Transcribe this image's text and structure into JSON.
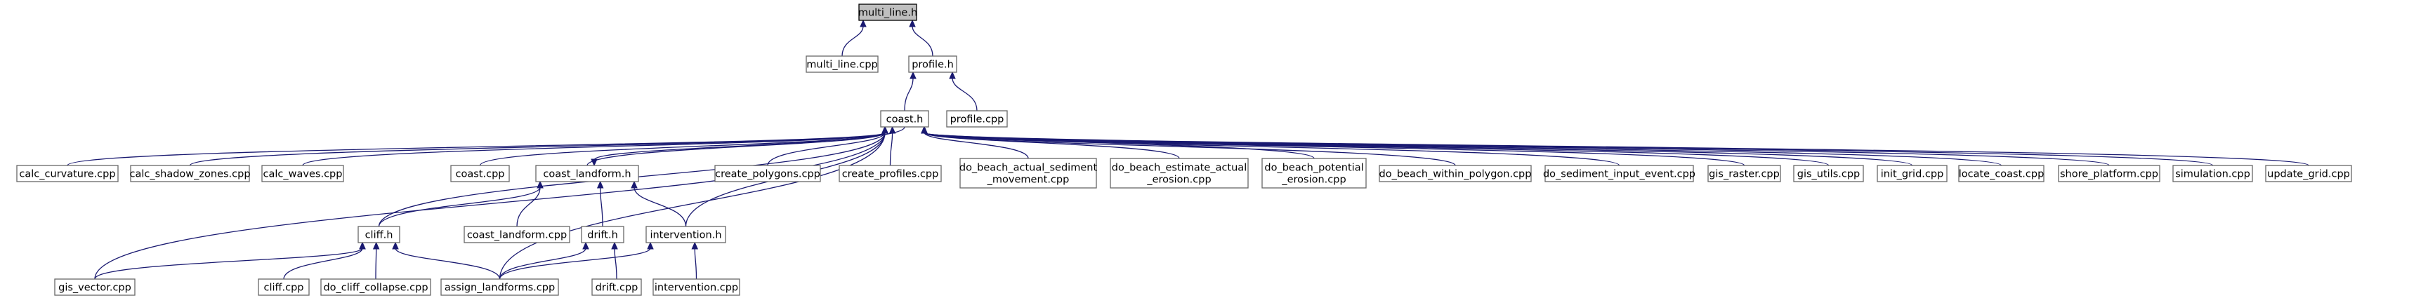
{
  "graph": {
    "nodes": {
      "multi_line_h": {
        "lines": [
          "multi_line.h"
        ],
        "root": true
      },
      "multi_line_cpp": {
        "lines": [
          "multi_line.cpp"
        ]
      },
      "profile_h": {
        "lines": [
          "profile.h"
        ]
      },
      "profile_cpp": {
        "lines": [
          "profile.cpp"
        ]
      },
      "coast_h": {
        "lines": [
          "coast.h"
        ]
      },
      "calc_curvature_cpp": {
        "lines": [
          "calc_curvature.cpp"
        ]
      },
      "calc_shadow_zones_cpp": {
        "lines": [
          "calc_shadow_zones.cpp"
        ]
      },
      "calc_waves_cpp": {
        "lines": [
          "calc_waves.cpp"
        ]
      },
      "coast_cpp": {
        "lines": [
          "coast.cpp"
        ]
      },
      "coast_landform_h": {
        "lines": [
          "coast_landform.h"
        ]
      },
      "create_polygons_cpp": {
        "lines": [
          "create_polygons.cpp"
        ]
      },
      "create_profiles_cpp": {
        "lines": [
          "create_profiles.cpp"
        ]
      },
      "do_beach_actual_sediment_movement_cpp": {
        "lines": [
          "do_beach_actual_sediment",
          "_movement.cpp"
        ]
      },
      "do_beach_estimate_actual_erosion_cpp": {
        "lines": [
          "do_beach_estimate_actual",
          "_erosion.cpp"
        ]
      },
      "do_beach_potential_erosion_cpp": {
        "lines": [
          "do_beach_potential",
          "_erosion.cpp"
        ]
      },
      "do_beach_within_polygon_cpp": {
        "lines": [
          "do_beach_within_polygon.cpp"
        ]
      },
      "do_sediment_input_event_cpp": {
        "lines": [
          "do_sediment_input_event.cpp"
        ]
      },
      "gis_raster_cpp": {
        "lines": [
          "gis_raster.cpp"
        ]
      },
      "gis_utils_cpp": {
        "lines": [
          "gis_utils.cpp"
        ]
      },
      "init_grid_cpp": {
        "lines": [
          "init_grid.cpp"
        ]
      },
      "locate_coast_cpp": {
        "lines": [
          "locate_coast.cpp"
        ]
      },
      "shore_platform_cpp": {
        "lines": [
          "shore_platform.cpp"
        ]
      },
      "simulation_cpp": {
        "lines": [
          "simulation.cpp"
        ]
      },
      "update_grid_cpp": {
        "lines": [
          "update_grid.cpp"
        ]
      },
      "cliff_h": {
        "lines": [
          "cliff.h"
        ]
      },
      "coast_landform_cpp": {
        "lines": [
          "coast_landform.cpp"
        ]
      },
      "drift_h": {
        "lines": [
          "drift.h"
        ]
      },
      "intervention_h": {
        "lines": [
          "intervention.h"
        ]
      },
      "gis_vector_cpp": {
        "lines": [
          "gis_vector.cpp"
        ]
      },
      "cliff_cpp": {
        "lines": [
          "cliff.cpp"
        ]
      },
      "do_cliff_collapse_cpp": {
        "lines": [
          "do_cliff_collapse.cpp"
        ]
      },
      "assign_landforms_cpp": {
        "lines": [
          "assign_landforms.cpp"
        ]
      },
      "drift_cpp": {
        "lines": [
          "drift.cpp"
        ]
      },
      "intervention_cpp": {
        "lines": [
          "intervention.cpp"
        ]
      }
    },
    "edges": [
      [
        "multi_line_cpp",
        "multi_line_h"
      ],
      [
        "profile_h",
        "multi_line_h"
      ],
      [
        "coast_h",
        "profile_h"
      ],
      [
        "profile_cpp",
        "profile_h"
      ],
      [
        "calc_curvature_cpp",
        "coast_h"
      ],
      [
        "calc_shadow_zones_cpp",
        "coast_h"
      ],
      [
        "calc_waves_cpp",
        "coast_h"
      ],
      [
        "coast_cpp",
        "coast_h"
      ],
      [
        "coast_landform_h",
        "coast_h"
      ],
      [
        "create_polygons_cpp",
        "coast_h"
      ],
      [
        "create_profiles_cpp",
        "coast_h"
      ],
      [
        "do_beach_actual_sediment_movement_cpp",
        "coast_h"
      ],
      [
        "do_beach_estimate_actual_erosion_cpp",
        "coast_h"
      ],
      [
        "do_beach_potential_erosion_cpp",
        "coast_h"
      ],
      [
        "do_beach_within_polygon_cpp",
        "coast_h"
      ],
      [
        "do_sediment_input_event_cpp",
        "coast_h"
      ],
      [
        "gis_raster_cpp",
        "coast_h"
      ],
      [
        "gis_utils_cpp",
        "coast_h"
      ],
      [
        "init_grid_cpp",
        "coast_h"
      ],
      [
        "locate_coast_cpp",
        "coast_h"
      ],
      [
        "shore_platform_cpp",
        "coast_h"
      ],
      [
        "simulation_cpp",
        "coast_h"
      ],
      [
        "update_grid_cpp",
        "coast_h"
      ],
      [
        "cliff_h",
        "coast_h"
      ],
      [
        "gis_vector_cpp",
        "coast_h"
      ],
      [
        "assign_landforms_cpp",
        "coast_h"
      ],
      [
        "intervention_h",
        "coast_h"
      ],
      [
        "coast_h",
        "coast_landform_h"
      ],
      [
        "cliff_h",
        "coast_landform_h"
      ],
      [
        "coast_landform_cpp",
        "coast_landform_h"
      ],
      [
        "drift_h",
        "coast_landform_h"
      ],
      [
        "intervention_h",
        "coast_landform_h"
      ],
      [
        "gis_vector_cpp",
        "cliff_h"
      ],
      [
        "cliff_cpp",
        "cliff_h"
      ],
      [
        "do_cliff_collapse_cpp",
        "cliff_h"
      ],
      [
        "assign_landforms_cpp",
        "cliff_h"
      ],
      [
        "assign_landforms_cpp",
        "drift_h"
      ],
      [
        "drift_cpp",
        "drift_h"
      ],
      [
        "assign_landforms_cpp",
        "intervention_h"
      ],
      [
        "intervention_cpp",
        "intervention_h"
      ]
    ]
  },
  "colors": {
    "edge": "#191970",
    "root_fill": "#bfbfbf",
    "node_stroke": "#666666",
    "root_stroke": "#000000"
  }
}
